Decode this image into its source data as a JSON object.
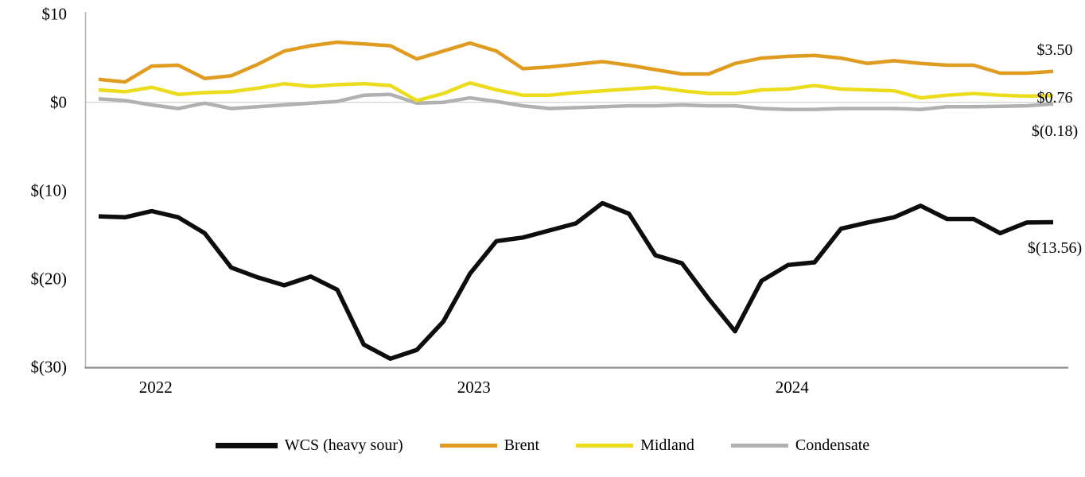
{
  "chart_data": {
    "type": "line",
    "title": "",
    "x_axis": {
      "tick_labels": [
        "2022",
        "2023",
        "2024"
      ],
      "tick_point_indices": [
        2,
        14,
        26
      ],
      "points_per_series": 37
    },
    "y_axis": {
      "tick_labels": [
        "$10",
        "$0",
        "$(10)",
        "$(20)",
        "$(30)"
      ],
      "tick_values": [
        10,
        0,
        -10,
        -20,
        -30
      ],
      "range": [
        -30,
        10
      ],
      "gridline_value": 0
    },
    "legend": {
      "position": "bottom"
    },
    "series": [
      {
        "name": "WCS (heavy sour)",
        "color": "#0d0d0d",
        "end_label": "$(13.56)",
        "values": [
          -12.9,
          -13.0,
          -12.3,
          -13.0,
          -14.8,
          -18.7,
          -19.8,
          -20.7,
          -19.7,
          -21.2,
          -27.4,
          -29.0,
          -28.0,
          -24.8,
          -19.4,
          -15.7,
          -15.3,
          -14.5,
          -13.7,
          -11.4,
          -12.6,
          -17.3,
          -18.2,
          -22.2,
          -25.9,
          -20.2,
          -18.4,
          -18.1,
          -14.3,
          -13.6,
          -13.0,
          -11.7,
          -13.2,
          -13.2,
          -14.8,
          -13.6,
          -13.56
        ]
      },
      {
        "name": "Brent",
        "color": "#e09c21",
        "end_label": "$3.50",
        "values": [
          2.6,
          2.3,
          4.1,
          4.2,
          2.7,
          3.0,
          4.3,
          5.8,
          6.4,
          6.8,
          6.6,
          6.4,
          4.9,
          5.8,
          6.7,
          5.8,
          3.8,
          4.0,
          4.3,
          4.6,
          4.2,
          3.7,
          3.2,
          3.2,
          4.4,
          5.0,
          5.2,
          5.3,
          5.0,
          4.4,
          4.7,
          4.4,
          4.2,
          4.2,
          3.3,
          3.3,
          3.5
        ]
      },
      {
        "name": "Midland",
        "color": "#ecdc1e",
        "end_label": "$0.76",
        "values": [
          1.4,
          1.2,
          1.7,
          0.9,
          1.1,
          1.2,
          1.6,
          2.1,
          1.8,
          2.0,
          2.1,
          1.9,
          0.2,
          1.0,
          2.2,
          1.4,
          0.8,
          0.8,
          1.1,
          1.3,
          1.5,
          1.7,
          1.3,
          1.0,
          1.0,
          1.4,
          1.5,
          1.9,
          1.5,
          1.4,
          1.3,
          0.5,
          0.8,
          1.0,
          0.8,
          0.7,
          0.76
        ]
      },
      {
        "name": "Condensate",
        "color": "#b1b1b1",
        "end_label": "$(0.18)",
        "values": [
          0.4,
          0.2,
          -0.3,
          -0.7,
          -0.1,
          -0.7,
          -0.5,
          -0.3,
          -0.1,
          0.1,
          0.8,
          0.9,
          -0.1,
          0.0,
          0.5,
          0.1,
          -0.4,
          -0.7,
          -0.6,
          -0.5,
          -0.4,
          -0.4,
          -0.3,
          -0.4,
          -0.4,
          -0.7,
          -0.8,
          -0.8,
          -0.7,
          -0.7,
          -0.7,
          -0.8,
          -0.5,
          -0.5,
          -0.45,
          -0.4,
          -0.18
        ]
      }
    ]
  }
}
